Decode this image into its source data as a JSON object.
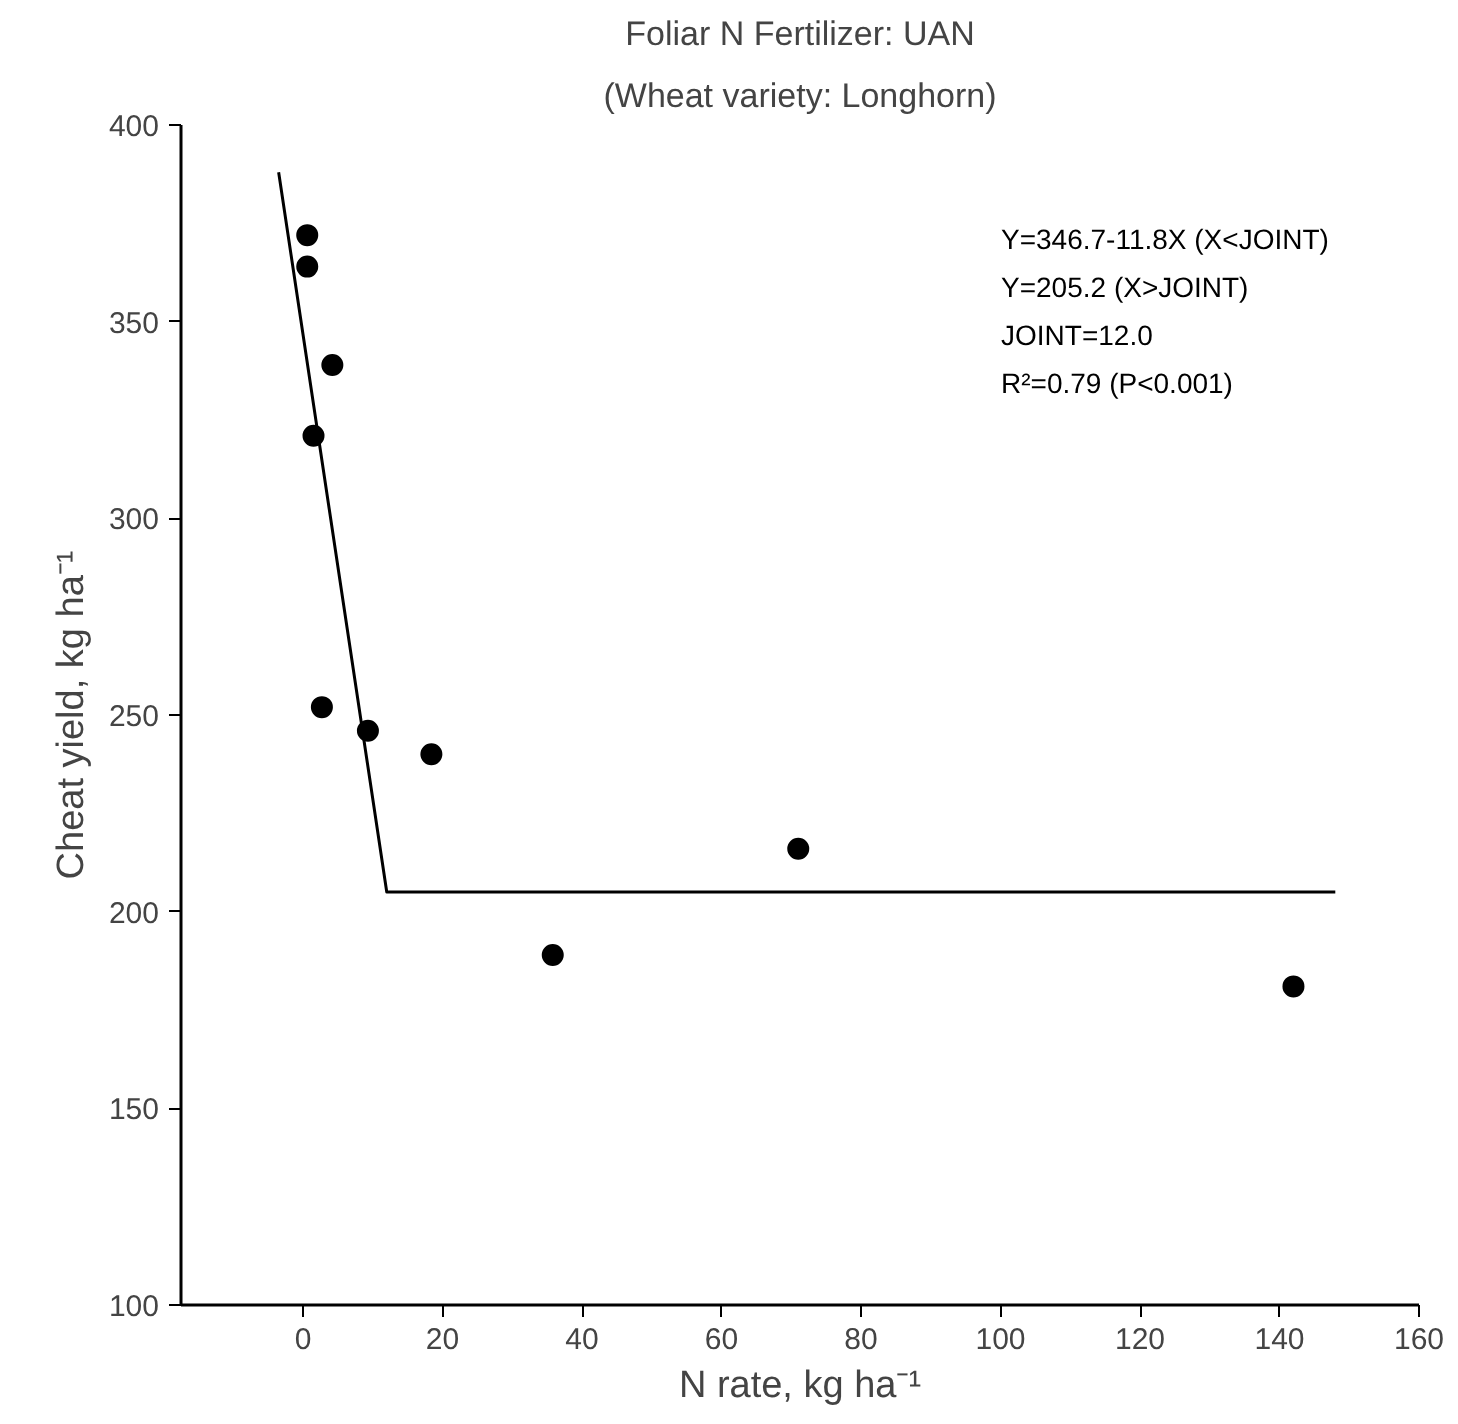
{
  "chart_data": {
    "type": "scatter",
    "title": "Foliar N Fertilizer: UAN",
    "subtitle": "(Wheat variety: Longhorn)",
    "xlabel": "N rate, kg ha⁻¹",
    "ylabel": "Cheat yield, kg ha⁻¹",
    "xlim": [
      -17.5,
      160
    ],
    "xticks": [
      0,
      20,
      40,
      60,
      80,
      100,
      120,
      140,
      160
    ],
    "ylim": [
      100,
      400
    ],
    "yticks": [
      100,
      150,
      200,
      250,
      300,
      350,
      400
    ],
    "grid": false,
    "series": [
      {
        "marker": "circle",
        "color": "#000000",
        "x": [
          0.6,
          0.6,
          4.2,
          1.5,
          2.7,
          9.3,
          18.4,
          35.8,
          71,
          142
        ],
        "values": [
          372,
          364,
          339,
          321,
          252,
          246,
          240,
          189,
          216,
          181
        ]
      },
      {
        "type": "line",
        "color": "#000000",
        "line_style": "solid",
        "x": [
          -3.5,
          12,
          148
        ],
        "values": [
          388,
          205,
          205
        ]
      }
    ],
    "annotations": [
      "Y=346.7-11.8X (X<JOINT)",
      "Y=205.2 (X>JOINT)",
      "JOINT=12.0",
      "R²=0.79 (P<0.001)"
    ]
  }
}
